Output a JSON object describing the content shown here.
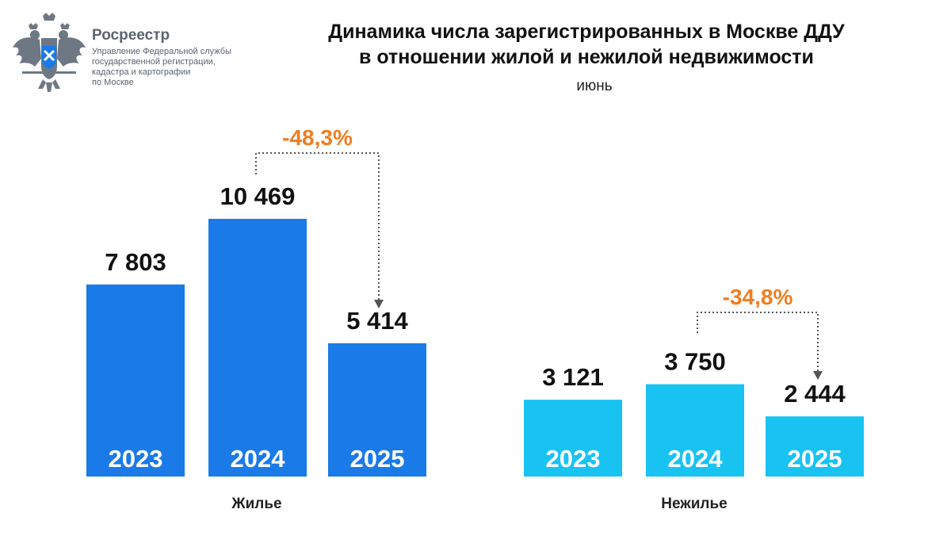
{
  "header": {
    "org_name": "Росреестр",
    "org_sub_lines": [
      "Управление Федеральной службы",
      "государственной регистрации,",
      "кадастра и картографии",
      "по Москве"
    ],
    "emblem_icon": "double-headed-eagle-emblem-icon"
  },
  "title_lines": [
    "Динамика числа зарегистрированных в Москве ДДУ",
    "в отношении жилой и нежилой недвижимости"
  ],
  "subtitle": "июнь",
  "chart_data": [
    {
      "type": "bar",
      "title": "Жилье",
      "categories": [
        "2023",
        "2024",
        "2025"
      ],
      "values": [
        7803,
        10469,
        5414
      ],
      "value_labels": [
        "7 803",
        "10 469",
        "5 414"
      ],
      "change_label": "-48,3%",
      "change_from": "2024",
      "change_to": "2025",
      "color": "#1a7ae8"
    },
    {
      "type": "bar",
      "title": "Нежилье",
      "categories": [
        "2023",
        "2024",
        "2025"
      ],
      "values": [
        3121,
        3750,
        2444
      ],
      "value_labels": [
        "3 121",
        "3 750",
        "2 444"
      ],
      "change_label": "-34,8%",
      "change_from": "2024",
      "change_to": "2025",
      "color": "#18c3f2"
    }
  ],
  "colors": {
    "change_text": "#f07d21",
    "arrow": "#555555",
    "year_text": "#ffffff"
  }
}
